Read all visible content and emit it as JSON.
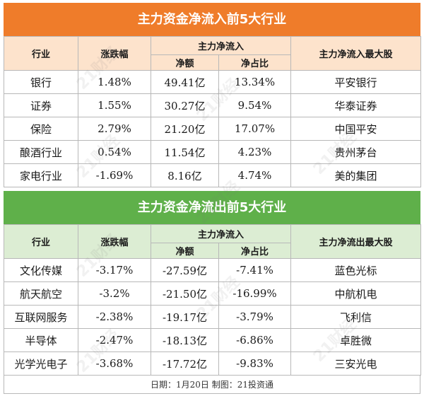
{
  "inflow": {
    "title": "主力资金净流入前5大行业",
    "headers": {
      "industry": "行业",
      "change": "涨跌幅",
      "group": "主力净流入",
      "net": "净额",
      "ratio": "净占比",
      "top_stock": "主力净流入最大股"
    },
    "rows": [
      {
        "industry": "银行",
        "change": "1.48%",
        "net": "49.41亿",
        "ratio": "13.34%",
        "stock": "平安银行"
      },
      {
        "industry": "证券",
        "change": "1.55%",
        "net": "30.27亿",
        "ratio": "9.54%",
        "stock": "华泰证券"
      },
      {
        "industry": "保险",
        "change": "2.79%",
        "net": "21.20亿",
        "ratio": "17.07%",
        "stock": "中国平安"
      },
      {
        "industry": "酿酒行业",
        "change": "0.54%",
        "net": "11.54亿",
        "ratio": "4.23%",
        "stock": "贵州茅台"
      },
      {
        "industry": "家电行业",
        "change": "-1.69%",
        "net": "8.16亿",
        "ratio": "4.74%",
        "stock": "美的集团"
      }
    ]
  },
  "outflow": {
    "title": "主力资金净流出前5大行业",
    "headers": {
      "industry": "行业",
      "change": "涨跌幅",
      "group": "主力净流入",
      "net": "净额",
      "ratio": "净占比",
      "top_stock": "主力净流出最大股"
    },
    "rows": [
      {
        "industry": "文化传媒",
        "change": "-3.17%",
        "net": "-27.59亿",
        "ratio": "-7.41%",
        "stock": "蓝色光标"
      },
      {
        "industry": "航天航空",
        "change": "-3.2%",
        "net": "-21.50亿",
        "ratio": "-16.99%",
        "stock": "中航机电"
      },
      {
        "industry": "互联网服务",
        "change": "-2.38%",
        "net": "-19.17亿",
        "ratio": "-3.79%",
        "stock": "飞利信"
      },
      {
        "industry": "半导体",
        "change": "-2.47%",
        "net": "-18.13亿",
        "ratio": "-6.86%",
        "stock": "卓胜微"
      },
      {
        "industry": "光学光电子",
        "change": "-3.68%",
        "net": "-17.72亿",
        "ratio": "-9.83%",
        "stock": "三安光电"
      }
    ]
  },
  "footer": "日期：1月20日  制图：21投资通",
  "watermark": "21财经",
  "colors": {
    "inflow_banner": "#ef7c2a",
    "inflow_header": "#fde3cc",
    "outflow_banner": "#5fb04a",
    "outflow_header": "#dcedd3"
  }
}
